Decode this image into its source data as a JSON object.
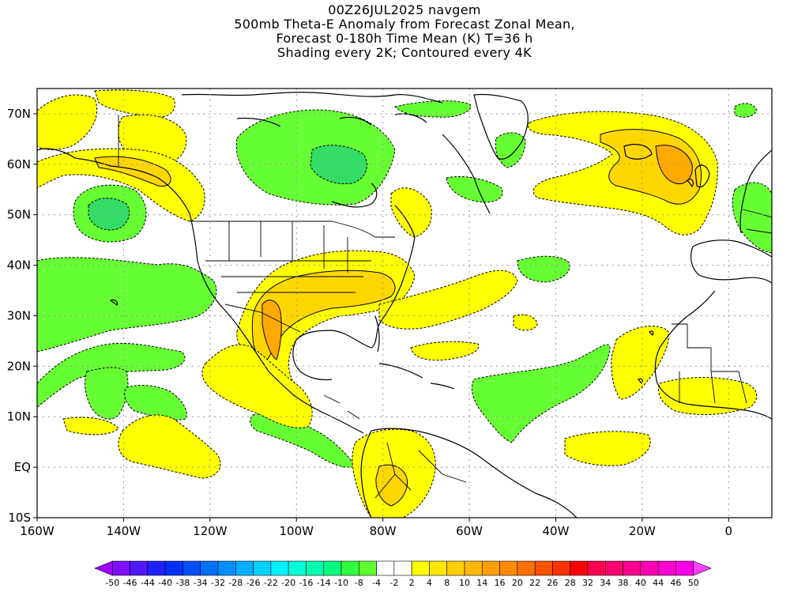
{
  "header": {
    "line1": "00Z26JUL2025 navgem",
    "line2": "500mb Theta-E Anomaly from Forecast Zonal Mean,",
    "line3": "Forecast 0-180h Time Mean (K) T=36 h",
    "line4": "Shading every 2K; Contoured every 4K"
  },
  "axes": {
    "lat_labels": [
      "70N",
      "60N",
      "50N",
      "40N",
      "30N",
      "20N",
      "10N",
      "EQ",
      "10S"
    ],
    "lon_labels": [
      "160W",
      "140W",
      "120W",
      "100W",
      "80W",
      "60W",
      "40W",
      "20W",
      "0"
    ],
    "lon_range": [
      -160,
      10
    ],
    "lat_range": [
      -10,
      75
    ],
    "grid": "dotted"
  },
  "colorbar": {
    "labels": [
      "-50",
      "-46",
      "-44",
      "-40",
      "-38",
      "-34",
      "-32",
      "-28",
      "-26",
      "-22",
      "-20",
      "-16",
      "-14",
      "-10",
      "-8",
      "-4",
      "-2",
      "2",
      "4",
      "8",
      "10",
      "14",
      "16",
      "20",
      "22",
      "26",
      "28",
      "32",
      "34",
      "38",
      "40",
      "44",
      "46",
      "50"
    ],
    "colors": [
      "#a000ff",
      "#8010ff",
      "#5018ff",
      "#2020ff",
      "#0030ff",
      "#0050ff",
      "#0070ff",
      "#0090ff",
      "#00b0ff",
      "#00d0ff",
      "#00f0ff",
      "#00ffd8",
      "#00ffb0",
      "#00ff80",
      "#30ff40",
      "#60ff30",
      "#ffffff",
      "#ffffff",
      "#ffff00",
      "#ffe800",
      "#ffd000",
      "#ffb800",
      "#ffa000",
      "#ff8c00",
      "#ff7000",
      "#ff5000",
      "#ff3000",
      "#ff0000",
      "#ff0050",
      "#ff0070",
      "#ff0090",
      "#ff00b0",
      "#ff00d0",
      "#ff00e8",
      "#ff40ff"
    ]
  },
  "colors": {
    "negative": "#66ff33",
    "deep_negative": "#33dd66",
    "positive_weak": "#ffff00",
    "positive_mid": "#ffd700",
    "positive_strong": "#ffaa00"
  }
}
